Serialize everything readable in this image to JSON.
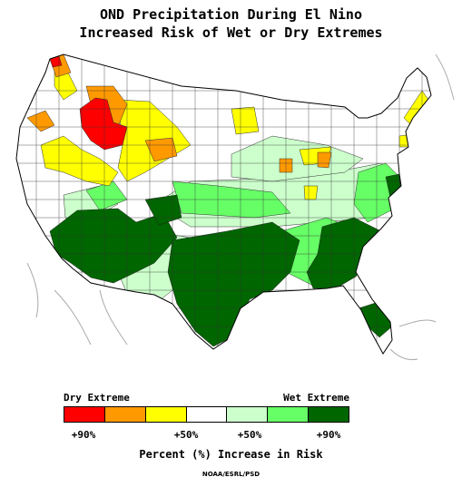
{
  "title": {
    "line1": "OND Precipitation During El Nino",
    "line2": "Increased Risk of Wet or Dry Extremes"
  },
  "legend": {
    "dry_label": "Dry Extreme",
    "wet_label": "Wet Extreme",
    "colors": [
      "#ff0000",
      "#ff9900",
      "#ffff00",
      "#ffffff",
      "#ccffcc",
      "#66ff66",
      "#006600"
    ],
    "ticks": [
      "+90%",
      "+50%",
      "+50%",
      "+90%"
    ],
    "axis_label": "Percent (%) Increase in Risk"
  },
  "credit": "NOAA/ESRL/PSD",
  "map": {
    "region": "contiguous-united-states",
    "boundaries": "climate-divisions",
    "colors": {
      "outline": "#000000",
      "grid": "#333333",
      "rivers": "#aaaaaa",
      "dry_90": "#ff0000",
      "dry_70": "#ff9900",
      "dry_50": "#ffff00",
      "neutral": "#ffffff",
      "wet_50": "#ccffcc",
      "wet_70": "#66ff66",
      "wet_90": "#006600"
    }
  }
}
